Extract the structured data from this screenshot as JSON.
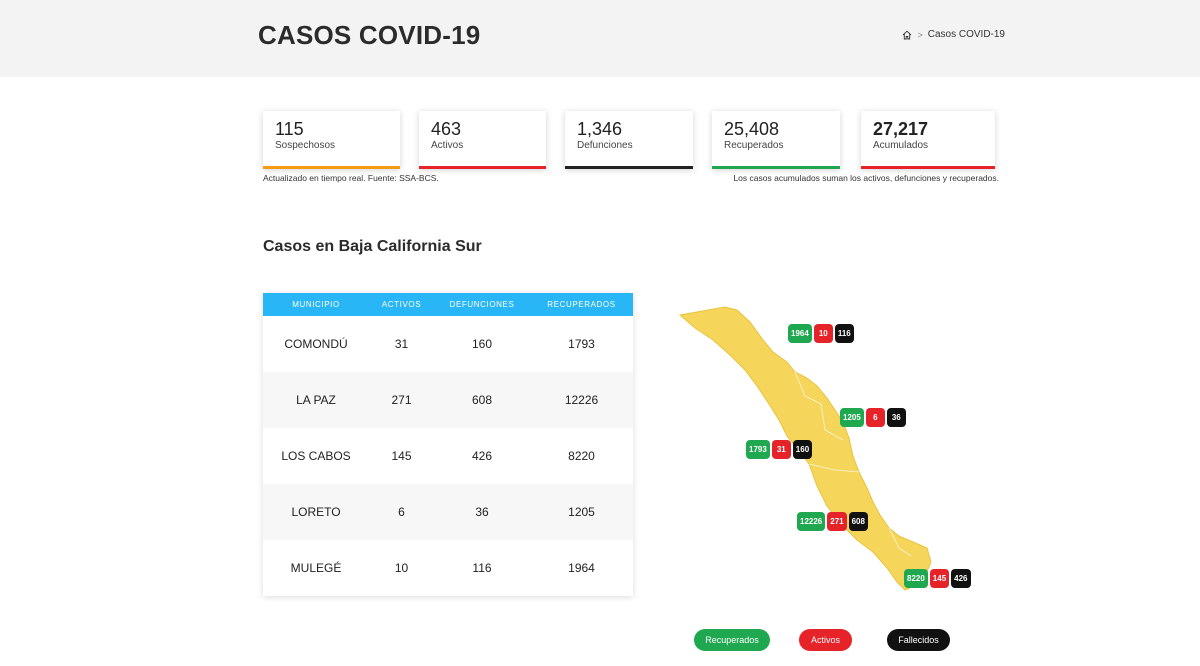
{
  "header": {
    "title": "CASOS COVID-19",
    "breadcrumb_current": "Casos COVID-19"
  },
  "stats": [
    {
      "value": "115",
      "label": "Sospechosos",
      "color": "#f39c12"
    },
    {
      "value": "463",
      "label": "Activos",
      "color": "#e52329"
    },
    {
      "value": "1,346",
      "label": "Defunciones",
      "color": "#222222"
    },
    {
      "value": "25,408",
      "label": "Recuperados",
      "color": "#1fa84f"
    },
    {
      "value": "27,217",
      "label": "Acumulados",
      "color": "#e52329"
    }
  ],
  "notes": {
    "left": "Actualizado en tiempo real. Fuente: SSA-BCS.",
    "right": "Los casos acumulados suman los activos, defunciones y recuperados."
  },
  "section_title": "Casos en Baja California Sur",
  "table": {
    "headers": [
      "MUNICIPIO",
      "ACTIVOS",
      "DEFUNCIONES",
      "RECUPERADOS"
    ],
    "rows": [
      [
        "COMONDÚ",
        "31",
        "160",
        "1793"
      ],
      [
        "LA PAZ",
        "271",
        "608",
        "12226"
      ],
      [
        "LOS CABOS",
        "145",
        "426",
        "8220"
      ],
      [
        "LORETO",
        "6",
        "36",
        "1205"
      ],
      [
        "MULEGÉ",
        "10",
        "116",
        "1964"
      ]
    ]
  },
  "map": {
    "fill_color": "#f5d55a",
    "badges": [
      {
        "municipio": "Mulegé",
        "recuperados": "1964",
        "activos": "10",
        "fallecidos": "116"
      },
      {
        "municipio": "Loreto",
        "recuperados": "1205",
        "activos": "6",
        "fallecidos": "36"
      },
      {
        "municipio": "Comondú",
        "recuperados": "1793",
        "activos": "31",
        "fallecidos": "160"
      },
      {
        "municipio": "La Paz",
        "recuperados": "12226",
        "activos": "271",
        "fallecidos": "608"
      },
      {
        "municipio": "Los Cabos",
        "recuperados": "8220",
        "activos": "145",
        "fallecidos": "426"
      }
    ]
  },
  "legend": [
    {
      "label": "Recuperados",
      "color": "#1fa84f"
    },
    {
      "label": "Activos",
      "color": "#e52329"
    },
    {
      "label": "Fallecidos",
      "color": "#111111"
    }
  ]
}
